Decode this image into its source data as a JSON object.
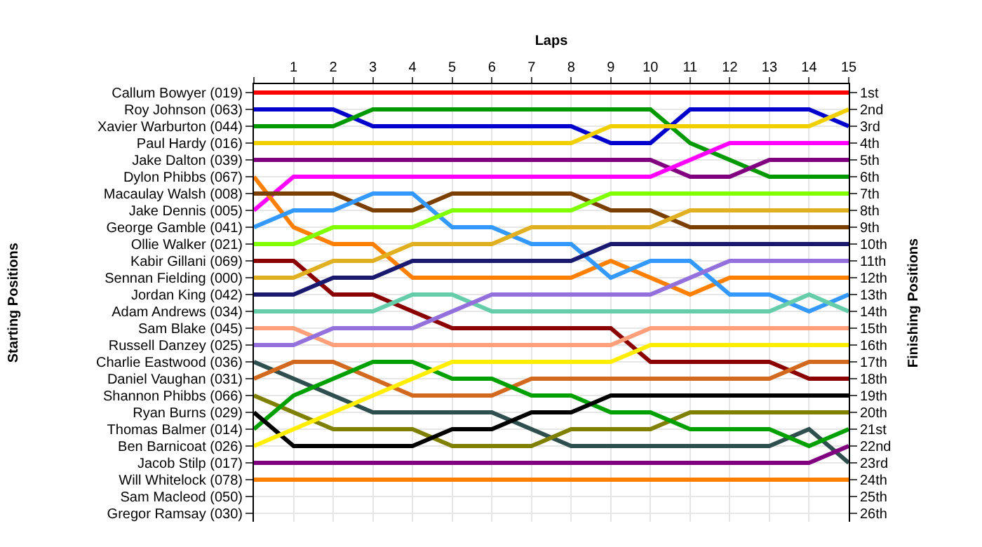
{
  "chart_data": {
    "type": "line",
    "xlabel": "Laps",
    "annotations": [
      "Starting Positions"
    ],
    "y2label": "Finishing Positions",
    "x": [
      0,
      1,
      2,
      3,
      4,
      5,
      6,
      7,
      8,
      9,
      10,
      11,
      12,
      13,
      14,
      15
    ],
    "xlim": [
      0,
      15
    ],
    "xticks": [
      {
        "value": 0,
        "label": null
      },
      1,
      2,
      3,
      4,
      5,
      6,
      7,
      8,
      9,
      10,
      11,
      12,
      13,
      14,
      15
    ],
    "y_categories": [
      "Callum Bowyer (019)",
      "Roy Johnson (063)",
      "Xavier Warburton (044)",
      "Paul Hardy (016)",
      "Jake Dalton (039)",
      "Dylon Phibbs (067)",
      "Macaulay Walsh (008)",
      "Jake Dennis (005)",
      "George Gamble (041)",
      "Ollie Walker (021)",
      "Kabir Gillani (069)",
      "Sennan Fielding (000)",
      "Jordan King (042)",
      "Adam Andrews (034)",
      "Sam Blake (045)",
      "Russell Danzey (025)",
      "Charlie Eastwood (036)",
      "Daniel Vaughan (031)",
      "Shannon Phibbs (066)",
      "Ryan Burns (029)",
      "Thomas Balmer (014)",
      "Ben Barnicoat (026)",
      "Jacob Stilp (017)",
      "Will Whitelock (078)",
      "Sam Macleod (050)",
      "Gregor Ramsay (030)"
    ],
    "y2lim": [
      26.5,
      0.5
    ],
    "y2ticks": [
      {
        "value": 1,
        "label": "1st"
      },
      {
        "value": 2,
        "label": "2nd"
      },
      {
        "value": 3,
        "label": "3rd"
      },
      {
        "value": 4,
        "label": "4th"
      },
      {
        "value": 5,
        "label": "5th"
      },
      {
        "value": 6,
        "label": "6th"
      },
      {
        "value": 7,
        "label": "7th"
      },
      {
        "value": 8,
        "label": "8th"
      },
      {
        "value": 9,
        "label": "9th"
      },
      {
        "value": 10,
        "label": "10th"
      },
      {
        "value": 11,
        "label": "11th"
      },
      {
        "value": 12,
        "label": "12th"
      },
      {
        "value": 13,
        "label": "13th"
      },
      {
        "value": 14,
        "label": "14th"
      },
      {
        "value": 15,
        "label": "15th"
      },
      {
        "value": 16,
        "label": "16th"
      },
      {
        "value": 17,
        "label": "17th"
      },
      {
        "value": 18,
        "label": "18th"
      },
      {
        "value": 19,
        "label": "19th"
      },
      {
        "value": 20,
        "label": "20th"
      },
      {
        "value": 21,
        "label": "21st"
      },
      {
        "value": 22,
        "label": "22nd"
      },
      {
        "value": 23,
        "label": "23rd"
      },
      {
        "value": 24,
        "label": "24th"
      },
      {
        "value": 25,
        "label": "25th"
      },
      {
        "value": 26,
        "label": "26th"
      }
    ],
    "grid": true,
    "marker": "none",
    "line_style": "solid",
    "series": [
      {
        "color": "#ff0000",
        "axis": "y2",
        "values": [
          1,
          1,
          1,
          1,
          1,
          1,
          1,
          1,
          1,
          1,
          1,
          1,
          1,
          1,
          1,
          1
        ]
      },
      {
        "color": "#0000cd",
        "axis": "y2",
        "values": [
          2,
          2,
          2,
          3,
          3,
          3,
          3,
          3,
          3,
          4,
          4,
          2,
          2,
          2,
          2,
          3
        ]
      },
      {
        "color": "#009900",
        "axis": "y2",
        "values": [
          3,
          3,
          3,
          2,
          2,
          2,
          2,
          2,
          2,
          2,
          2,
          4,
          5,
          6,
          6,
          6
        ]
      },
      {
        "color": "#f0d000",
        "axis": "y2",
        "values": [
          4,
          4,
          4,
          4,
          4,
          4,
          4,
          4,
          4,
          3,
          3,
          3,
          3,
          3,
          3,
          2
        ]
      },
      {
        "color": "#800080",
        "axis": "y2",
        "values": [
          5,
          5,
          5,
          5,
          5,
          5,
          5,
          5,
          5,
          5,
          5,
          6,
          6,
          5,
          5,
          5
        ]
      },
      {
        "color": "#ff00ff",
        "axis": "y2",
        "values": [
          8,
          6,
          6,
          6,
          6,
          6,
          6,
          6,
          6,
          6,
          6,
          5,
          4,
          4,
          4,
          4
        ]
      },
      {
        "color": "#ff8000",
        "axis": "y2",
        "values": [
          6,
          9,
          10,
          10,
          12,
          12,
          12,
          12,
          12,
          11,
          12,
          13,
          12,
          12,
          12,
          12
        ]
      },
      {
        "color": "#7b3f00",
        "axis": "y2",
        "values": [
          7,
          7,
          7,
          8,
          8,
          7,
          7,
          7,
          7,
          8,
          8,
          9,
          9,
          9,
          9,
          9
        ]
      },
      {
        "color": "#3399ff",
        "axis": "y2",
        "values": [
          9,
          8,
          8,
          7,
          7,
          9,
          9,
          10,
          10,
          12,
          11,
          11,
          13,
          13,
          14,
          13
        ]
      },
      {
        "color": "#80ff00",
        "axis": "y2",
        "values": [
          10,
          10,
          9,
          9,
          9,
          8,
          8,
          8,
          8,
          7,
          7,
          7,
          7,
          7,
          7,
          7
        ]
      },
      {
        "color": "#8b0000",
        "axis": "y2",
        "values": [
          11,
          11,
          13,
          13,
          14,
          15,
          15,
          15,
          15,
          15,
          17,
          17,
          17,
          17,
          18,
          18
        ]
      },
      {
        "color": "#e0b020",
        "axis": "y2",
        "values": [
          12,
          12,
          11,
          11,
          10,
          10,
          10,
          9,
          9,
          9,
          9,
          8,
          8,
          8,
          8,
          8
        ]
      },
      {
        "color": "#191970",
        "axis": "y2",
        "values": [
          13,
          13,
          12,
          12,
          11,
          11,
          11,
          11,
          11,
          10,
          10,
          10,
          10,
          10,
          10,
          10
        ]
      },
      {
        "color": "#66cdaa",
        "axis": "y2",
        "values": [
          14,
          14,
          14,
          14,
          13,
          13,
          14,
          14,
          14,
          14,
          14,
          14,
          14,
          14,
          13,
          14
        ]
      },
      {
        "color": "#ffa07a",
        "axis": "y2",
        "values": [
          15,
          15,
          16,
          16,
          16,
          16,
          16,
          16,
          16,
          16,
          15,
          15,
          15,
          15,
          15,
          15
        ]
      },
      {
        "color": "#9370db",
        "axis": "y2",
        "values": [
          16,
          16,
          15,
          15,
          15,
          14,
          13,
          13,
          13,
          13,
          13,
          12,
          11,
          11,
          11,
          11
        ]
      },
      {
        "color": "#2f4f4f",
        "axis": "y2",
        "values": [
          17,
          18,
          19,
          20,
          20,
          20,
          20,
          21,
          22,
          22,
          22,
          22,
          22,
          22,
          21,
          23
        ]
      },
      {
        "color": "#d2691e",
        "axis": "y2",
        "values": [
          18,
          17,
          17,
          18,
          19,
          19,
          19,
          18,
          18,
          18,
          18,
          18,
          18,
          18,
          17,
          17
        ]
      },
      {
        "color": "#808000",
        "axis": "y2",
        "values": [
          19,
          20,
          21,
          21,
          21,
          22,
          22,
          22,
          21,
          21,
          21,
          20,
          20,
          20,
          20,
          20
        ]
      },
      {
        "color": "#00a000",
        "axis": "y2",
        "values": [
          21,
          19,
          18,
          17,
          17,
          18,
          18,
          19,
          19,
          20,
          20,
          21,
          21,
          21,
          22,
          21
        ]
      },
      {
        "color": "#000000",
        "axis": "y2",
        "values": [
          20,
          22,
          22,
          22,
          22,
          21,
          21,
          20,
          20,
          19,
          19,
          19,
          19,
          19,
          19,
          19
        ]
      },
      {
        "color": "#ffee00",
        "axis": "y2",
        "values": [
          22,
          21,
          20,
          19,
          18,
          17,
          17,
          17,
          17,
          17,
          16,
          16,
          16,
          16,
          16,
          16
        ]
      },
      {
        "color": "#800080",
        "axis": "y2",
        "values": [
          23,
          23,
          23,
          23,
          23,
          23,
          23,
          23,
          23,
          23,
          23,
          23,
          23,
          23,
          23,
          22
        ]
      },
      {
        "color": "#ff8000",
        "axis": "y2",
        "values": [
          24,
          24,
          24,
          24,
          24,
          24,
          24,
          24,
          24,
          24,
          24,
          24,
          24,
          24,
          24,
          24
        ]
      }
    ]
  }
}
